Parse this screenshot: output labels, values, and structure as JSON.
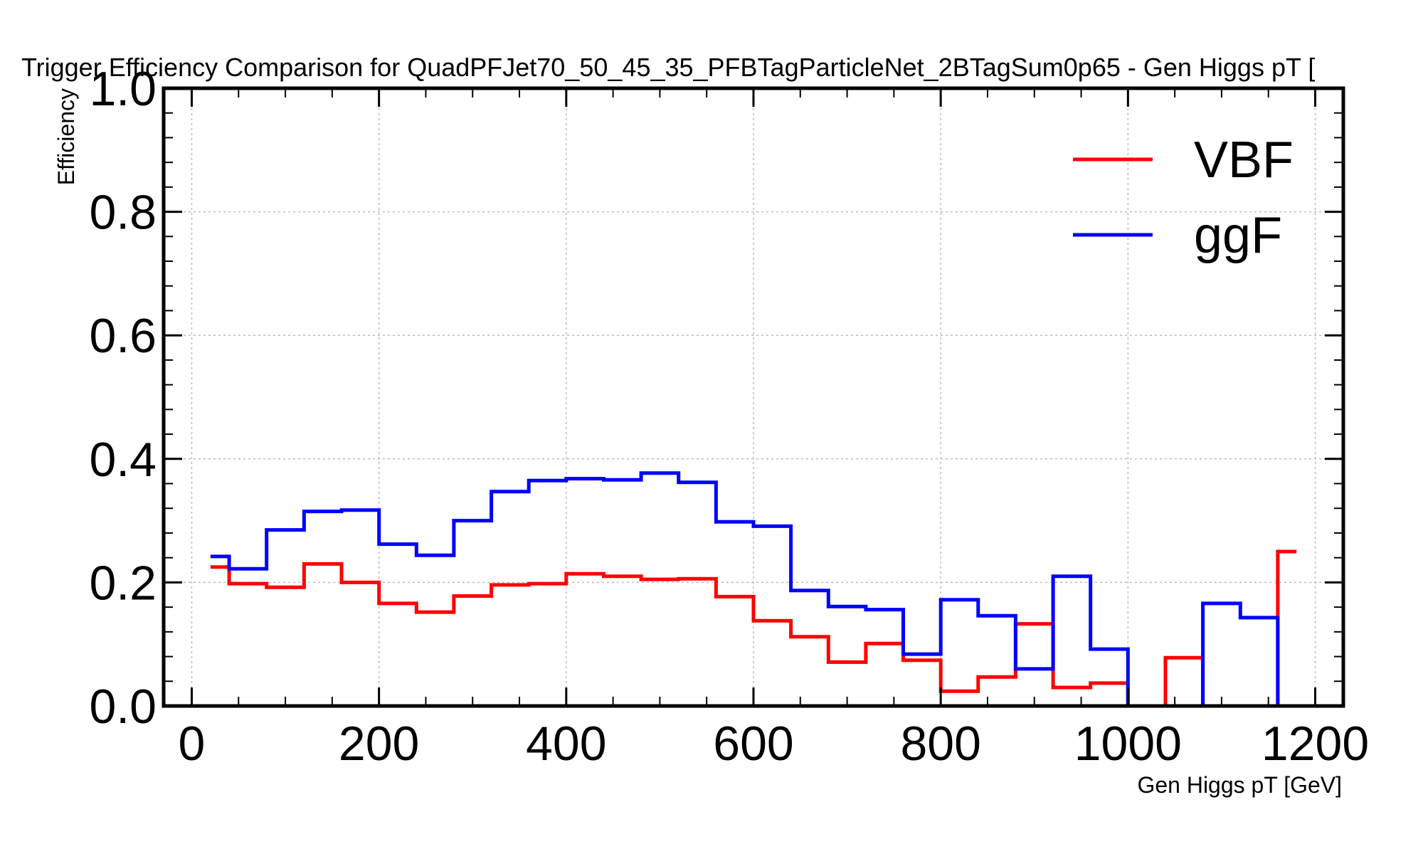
{
  "chart_data": {
    "type": "line",
    "step": "post",
    "title": "Trigger Efficiency Comparison for QuadPFJet70_50_45_35_PFBTagParticleNet_2BTagSum0p65 - Gen Higgs pT [",
    "xlabel": "Gen Higgs pT [GeV]",
    "ylabel": "Efficiency",
    "xlim": [
      -30,
      1230
    ],
    "ylim": [
      0,
      1.0
    ],
    "xticks": [
      0,
      200,
      400,
      600,
      800,
      1000,
      1200
    ],
    "yticks": [
      0.0,
      0.2,
      0.4,
      0.6,
      0.8,
      1.0
    ],
    "ytick_labels": [
      "0.0",
      "0.2",
      "0.4",
      "0.6",
      "0.8",
      "1.0"
    ],
    "grid": true,
    "legend_position": "top-right",
    "bin_edges": [
      20,
      40,
      80,
      120,
      160,
      200,
      240,
      280,
      320,
      360,
      400,
      440,
      480,
      520,
      560,
      600,
      640,
      680,
      720,
      760,
      800,
      840,
      880,
      920,
      960,
      1000,
      1040,
      1080,
      1120,
      1160,
      1180
    ],
    "series": [
      {
        "name": "VBF",
        "color": "#ff0000",
        "values": [
          0.225,
          0.198,
          0.192,
          0.23,
          0.2,
          0.166,
          0.152,
          0.178,
          0.196,
          0.198,
          0.214,
          0.21,
          0.205,
          0.206,
          0.177,
          0.138,
          0.112,
          0.071,
          0.101,
          0.074,
          0.024,
          0.047,
          0.133,
          0.03,
          0.037,
          0.0,
          0.078,
          0.0,
          0.0,
          0.25
        ]
      },
      {
        "name": "ggF",
        "color": "#0000ff",
        "values": [
          0.242,
          0.222,
          0.285,
          0.315,
          0.317,
          0.262,
          0.244,
          0.3,
          0.347,
          0.365,
          0.368,
          0.366,
          0.377,
          0.362,
          0.298,
          0.291,
          0.187,
          0.161,
          0.156,
          0.084,
          0.172,
          0.146,
          0.06,
          0.21,
          0.092,
          0.0,
          0.0,
          0.166,
          0.143,
          0.0
        ]
      }
    ]
  }
}
